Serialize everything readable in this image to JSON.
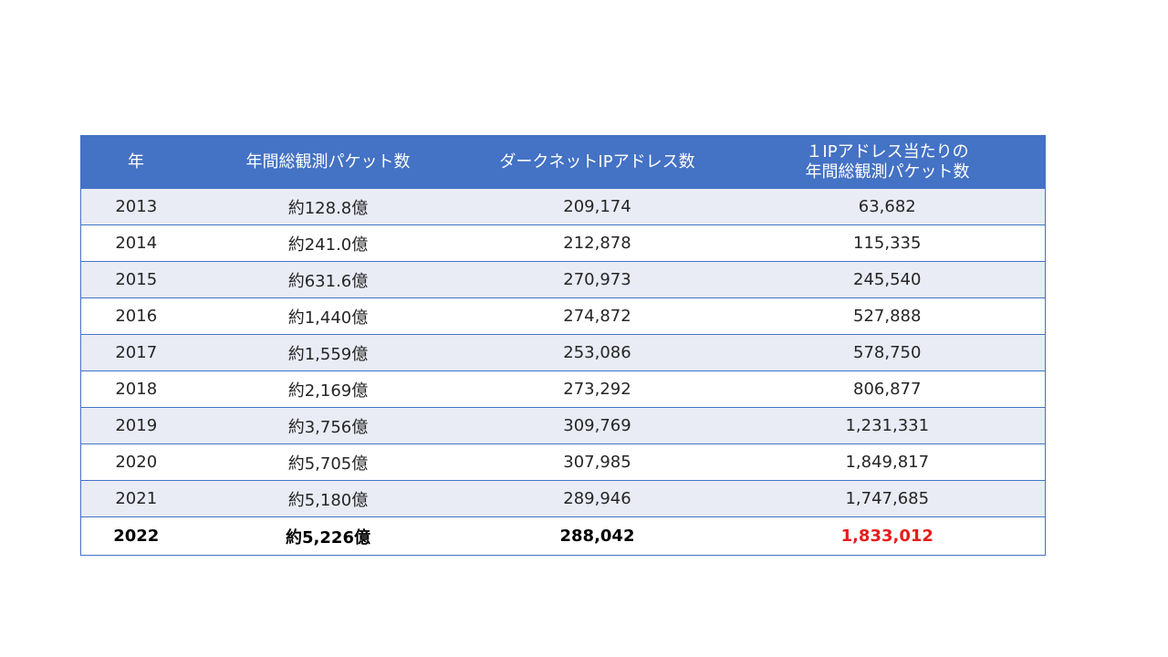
{
  "table": {
    "headers": {
      "year": "年",
      "annual_packets": "年間総観測パケット数",
      "darknet_ips": "ダークネットIPアドレス数",
      "per_ip_line1": "１IPアドレス当たりの",
      "per_ip_line2": "年間総観測パケット数"
    },
    "rows": [
      {
        "year": "2013",
        "annual_packets": "約128.8億",
        "darknet_ips": "209,174",
        "per_ip": "63,682"
      },
      {
        "year": "2014",
        "annual_packets": "約241.0億",
        "darknet_ips": "212,878",
        "per_ip": "115,335"
      },
      {
        "year": "2015",
        "annual_packets": "約631.6億",
        "darknet_ips": "270,973",
        "per_ip": "245,540"
      },
      {
        "year": "2016",
        "annual_packets": "約1,440億",
        "darknet_ips": "274,872",
        "per_ip": "527,888"
      },
      {
        "year": "2017",
        "annual_packets": "約1,559億",
        "darknet_ips": "253,086",
        "per_ip": "578,750"
      },
      {
        "year": "2018",
        "annual_packets": "約2,169億",
        "darknet_ips": "273,292",
        "per_ip": "806,877"
      },
      {
        "year": "2019",
        "annual_packets": "約3,756億",
        "darknet_ips": "309,769",
        "per_ip": "1,231,331"
      },
      {
        "year": "2020",
        "annual_packets": "約5,705億",
        "darknet_ips": "307,985",
        "per_ip": "1,849,817"
      },
      {
        "year": "2021",
        "annual_packets": "約5,180億",
        "darknet_ips": "289,946",
        "per_ip": "1,747,685"
      },
      {
        "year": "2022",
        "annual_packets": "約5,226億",
        "darknet_ips": "288,042",
        "per_ip": "1,833,012"
      }
    ]
  },
  "colors": {
    "header_bg": "#4472c4",
    "band_row_bg": "#e9ebf5",
    "highlight_value": "#e81c1c"
  }
}
